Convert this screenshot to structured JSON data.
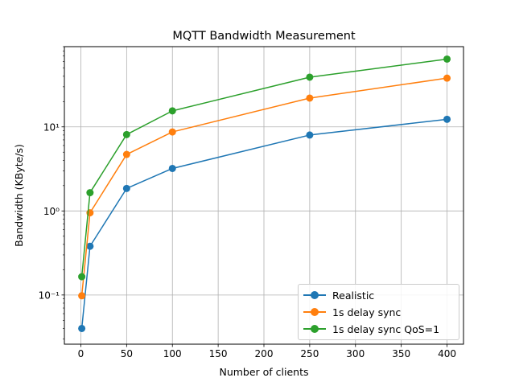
{
  "chart_data": {
    "type": "line",
    "title": "MQTT Bandwidth Measurement",
    "xlabel": "Number of clients",
    "ylabel": "Bandwidth (KByte/s)",
    "yscale": "log",
    "xlim": [
      -18,
      418
    ],
    "ylim": [
      0.026,
      90
    ],
    "x_ticks": [
      0,
      50,
      100,
      150,
      200,
      250,
      300,
      350,
      400
    ],
    "y_ticks": [
      0.1,
      1,
      10
    ],
    "y_tick_labels": [
      "10⁻¹",
      "10⁰",
      "10¹"
    ],
    "grid": true,
    "legend_position": "lower right",
    "series": [
      {
        "name": "Realistic",
        "color": "#1f77b4",
        "x": [
          1,
          10,
          50,
          100,
          250,
          400
        ],
        "y": [
          0.04,
          0.38,
          1.85,
          3.2,
          8.0,
          12.3
        ]
      },
      {
        "name": "1s delay sync",
        "color": "#ff7f0e",
        "x": [
          1,
          10,
          50,
          100,
          250,
          400
        ],
        "y": [
          0.098,
          0.95,
          4.7,
          8.7,
          22,
          38
        ]
      },
      {
        "name": "1s delay sync QoS=1",
        "color": "#2ca02c",
        "x": [
          1,
          10,
          50,
          100,
          250,
          400
        ],
        "y": [
          0.165,
          1.65,
          8.1,
          15.5,
          39,
          64
        ]
      }
    ]
  }
}
